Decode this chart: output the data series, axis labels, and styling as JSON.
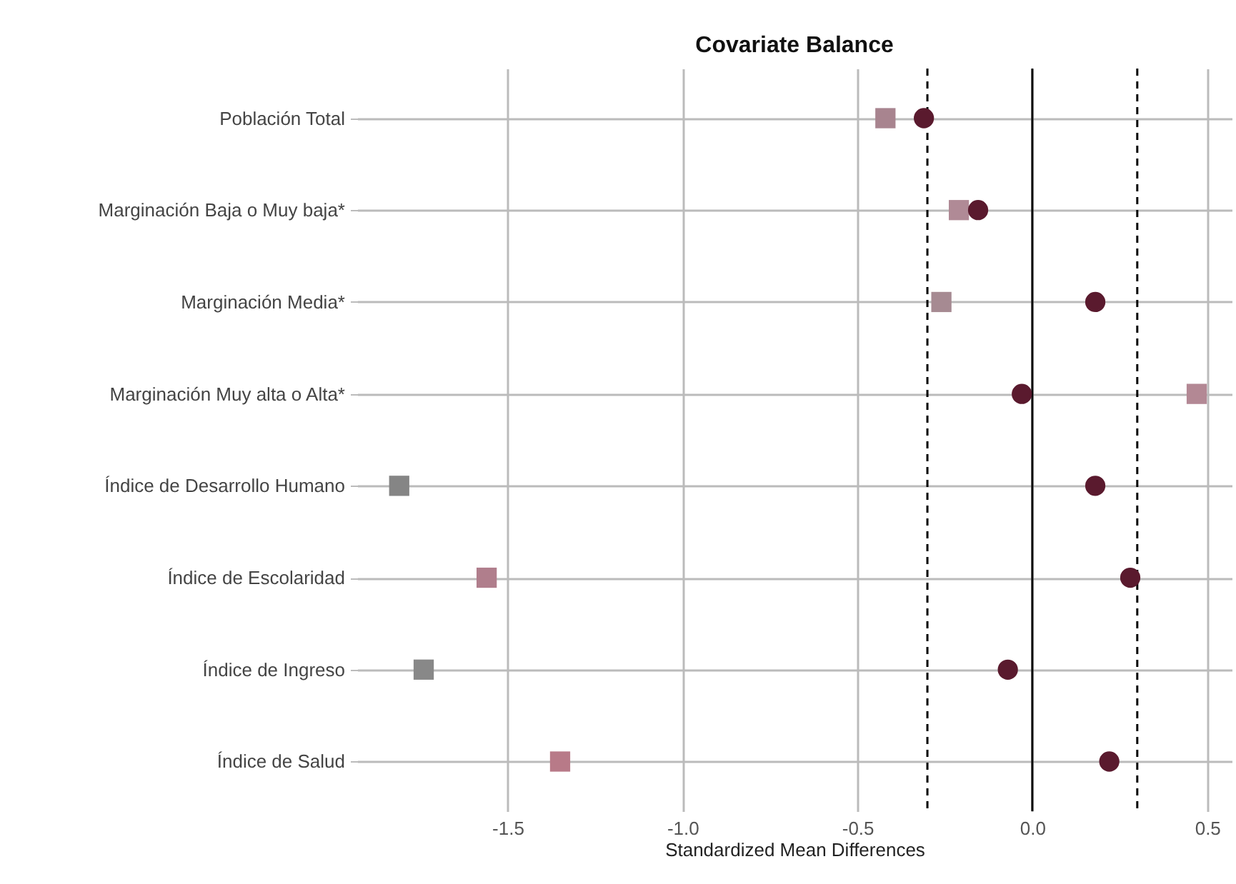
{
  "chart_data": {
    "type": "scatter",
    "title": "Covariate Balance",
    "xlabel": "Standardized Mean Differences",
    "orientation": "horizontal",
    "categories": [
      "Población Total",
      "Marginación Baja o Muy baja*",
      "Marginación Media*",
      "Marginación Muy alta o Alta*",
      "Índice de Desarrollo Humano",
      "Índice de Escolaridad",
      "Índice de Ingreso",
      "Índice de Salud"
    ],
    "series": [
      {
        "marker": "square",
        "colors": [
          "#a8848f",
          "#b08a96",
          "#a68a92",
          "#b38894",
          "#858585",
          "#b07e8c",
          "#888888",
          "#b87a88"
        ],
        "values": [
          -0.42,
          -0.21,
          -0.26,
          0.47,
          -1.81,
          -1.56,
          -1.74,
          -1.35
        ]
      },
      {
        "marker": "circle",
        "color": "#5a1a2e",
        "values": [
          -0.31,
          -0.155,
          0.18,
          -0.03,
          0.18,
          0.28,
          -0.07,
          0.22
        ]
      }
    ],
    "xlim": [
      -1.93,
      0.57
    ],
    "xticks": [
      -1.5,
      {
        "value": -1.0,
        "label": "-1.0"
      },
      -0.5,
      {
        "value": 0.0,
        "label": "0.0"
      },
      0.5
    ],
    "ref_lines": [
      {
        "axis": "x",
        "value": 0,
        "color": "#000000",
        "line_style": "solid"
      },
      {
        "axis": "x",
        "value": -0.3,
        "color": "#000000",
        "line_style": "dashed"
      },
      {
        "axis": "x",
        "value": 0.3,
        "color": "#000000",
        "line_style": "dashed"
      }
    ],
    "grid": true
  }
}
